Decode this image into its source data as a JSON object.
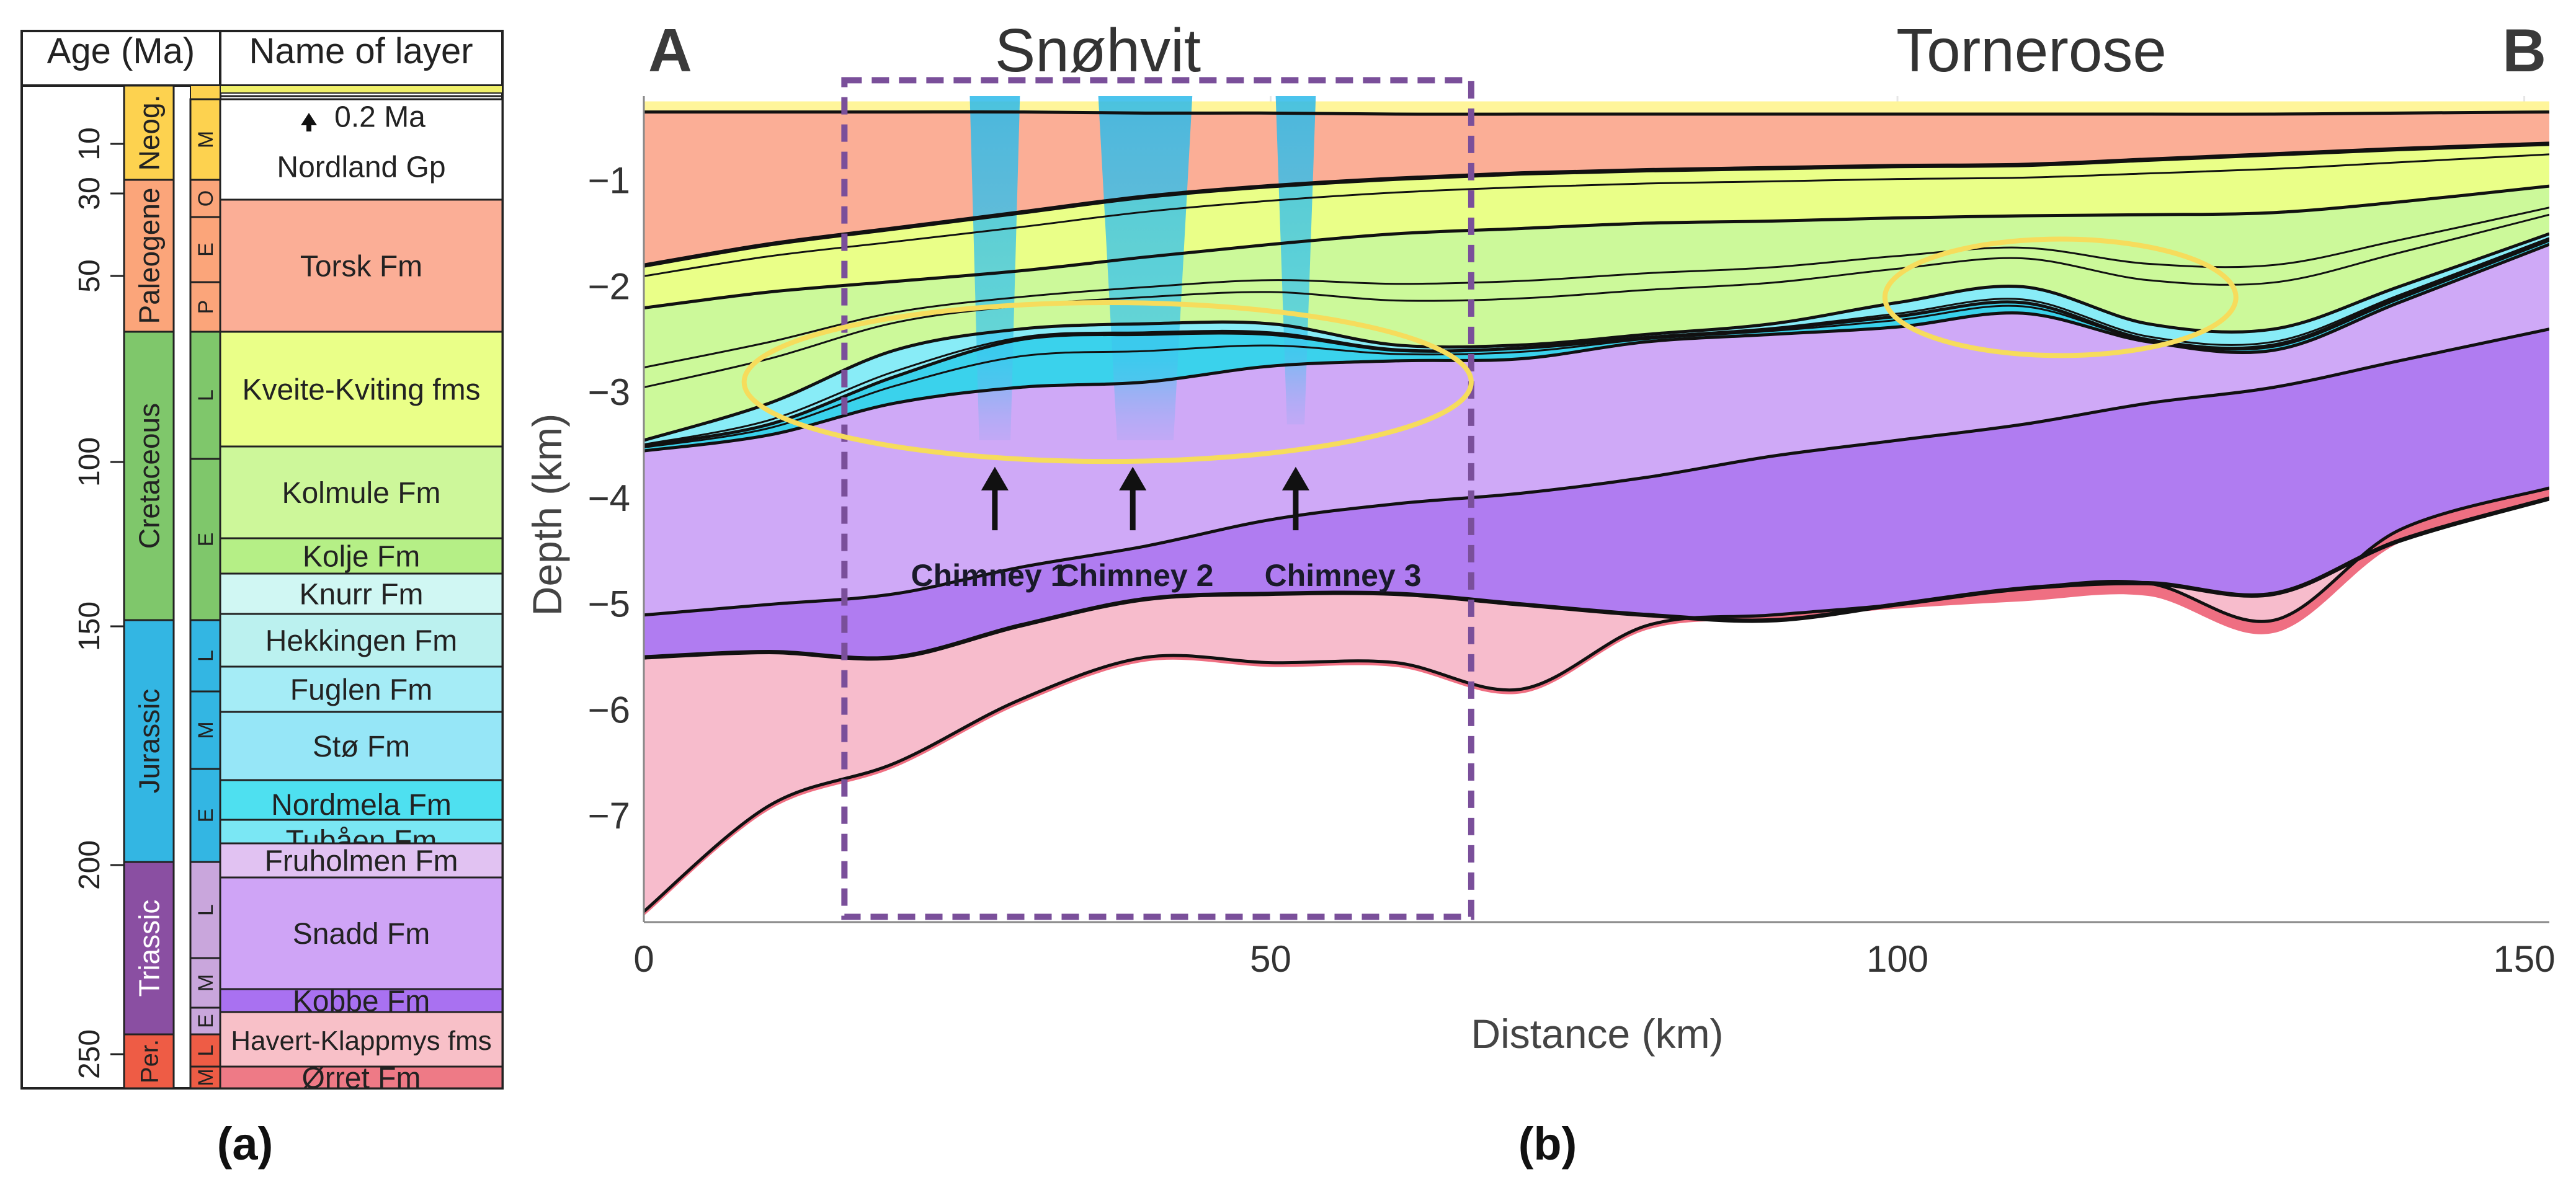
{
  "panel_a": {
    "header_age": "Age (Ma)",
    "header_name": "Name of layer",
    "age_ticks": [
      "10",
      "30",
      "50",
      "100",
      "150",
      "200",
      "250"
    ],
    "periods": [
      {
        "name": "Neog.",
        "color": "#fdd24f"
      },
      {
        "name": "Paleogene",
        "color": "#fba57a"
      },
      {
        "name": "Cretaceous",
        "color": "#7fc76b"
      },
      {
        "name": "Jurassic",
        "color": "#33b6e3"
      },
      {
        "name": "Triassic",
        "color": "#8a4fa2"
      },
      {
        "name": "Per.",
        "color": "#ee5c45"
      }
    ],
    "epochs": [
      "M",
      "O",
      "E",
      "P",
      "L",
      "E",
      "L",
      "M",
      "E",
      "L",
      "M",
      "E",
      "L",
      "M"
    ],
    "layers": [
      {
        "name": "0.2 Ma",
        "color": "#ffffff"
      },
      {
        "name": "Nordland Gp",
        "color": "#ffffff"
      },
      {
        "name": "Torsk Fm",
        "color": "#fbae96"
      },
      {
        "name": "Kveite-Kviting fms",
        "color": "#eaff88"
      },
      {
        "name": "Kolmule Fm",
        "color": "#cdf79a"
      },
      {
        "name": "Kolje Fm",
        "color": "#b5ef86"
      },
      {
        "name": "Knurr Fm",
        "color": "#d0f7f3"
      },
      {
        "name": "Hekkingen Fm",
        "color": "#bbf1ef"
      },
      {
        "name": "Fuglen Fm",
        "color": "#a5ecf6"
      },
      {
        "name": "Stø Fm",
        "color": "#96e6f7"
      },
      {
        "name": "Nordmela Fm",
        "color": "#4ee0f0"
      },
      {
        "name": "Tubåen Fm",
        "color": "#7ae7f4"
      },
      {
        "name": "Fruholmen Fm",
        "color": "#e1c2f2"
      },
      {
        "name": "Snadd Fm",
        "color": "#cfa4f6"
      },
      {
        "name": "Kobbe Fm",
        "color": "#a971f1"
      },
      {
        "name": "Havert-Klappmys fms",
        "color": "#f8c0c8"
      },
      {
        "name": "Ørret Fm",
        "color": "#ee7a86"
      }
    ],
    "caption": "(a)"
  },
  "panel_b": {
    "label_left": "A",
    "label_right": "B",
    "field_1": "Snøhvit",
    "field_2": "Tornerose",
    "chimneys": [
      "Chimney 1",
      "Chimney 2",
      "Chimney 3"
    ],
    "caption": "(b)"
  },
  "chart_data": {
    "type": "area",
    "xlabel": "Distance (km)",
    "ylabel": "Depth (km)",
    "xlim": [
      0,
      152
    ],
    "ylim": [
      -8,
      -0.2
    ],
    "xticks": [
      0,
      50,
      100,
      150
    ],
    "yticks": [
      -1,
      -2,
      -3,
      -4,
      -5,
      -6,
      -7
    ],
    "grid": true,
    "x": [
      0,
      10,
      20,
      30,
      40,
      50,
      60,
      70,
      80,
      90,
      100,
      110,
      120,
      130,
      140,
      152
    ],
    "horizons": [
      {
        "base_of": "Nordland Gp",
        "color": "#fff59a",
        "depth": [
          -0.35,
          -0.35,
          -0.35,
          -0.35,
          -0.36,
          -0.36,
          -0.37,
          -0.37,
          -0.37,
          -0.37,
          -0.37,
          -0.37,
          -0.37,
          -0.37,
          -0.36,
          -0.35
        ]
      },
      {
        "base_of": "Torsk Fm",
        "color": "#fbae96",
        "depth": [
          -1.8,
          -1.6,
          -1.45,
          -1.3,
          -1.15,
          -1.05,
          -0.98,
          -0.93,
          -0.9,
          -0.88,
          -0.86,
          -0.85,
          -0.8,
          -0.75,
          -0.7,
          -0.65
        ]
      },
      {
        "base_of": "Kveite-Kviting fms",
        "color": "#eaff88",
        "depth": [
          -2.2,
          -2.05,
          -1.95,
          -1.85,
          -1.72,
          -1.6,
          -1.5,
          -1.45,
          -1.4,
          -1.38,
          -1.35,
          -1.33,
          -1.32,
          -1.3,
          -1.2,
          -1.05
        ]
      },
      {
        "base_of": "Kolmule Fm",
        "color": "#ccf99a",
        "depth": [
          -3.45,
          -3.1,
          -2.6,
          -2.4,
          -2.35,
          -2.35,
          -2.55,
          -2.55,
          -2.45,
          -2.35,
          -2.15,
          -2.0,
          -2.35,
          -2.4,
          -2.0,
          -1.5
        ]
      },
      {
        "base_of": "Kolje Fm",
        "color": "#88ecf7",
        "depth": [
          -3.5,
          -3.3,
          -2.85,
          -2.5,
          -2.45,
          -2.45,
          -2.6,
          -2.58,
          -2.48,
          -2.4,
          -2.28,
          -2.15,
          -2.5,
          -2.55,
          -2.1,
          -1.55
        ]
      },
      {
        "base_of": "Jurassic",
        "color": "#3ad2ec",
        "depth": [
          -3.55,
          -3.4,
          -3.1,
          -2.95,
          -2.9,
          -2.75,
          -2.7,
          -2.68,
          -2.52,
          -2.45,
          -2.38,
          -2.25,
          -2.52,
          -2.6,
          -2.15,
          -1.6
        ]
      },
      {
        "base_of": "Snadd Fm",
        "color": "#cfa9f7",
        "depth": [
          -5.1,
          -5.0,
          -4.9,
          -4.65,
          -4.45,
          -4.2,
          -4.05,
          -3.95,
          -3.8,
          -3.6,
          -3.45,
          -3.3,
          -3.1,
          -2.95,
          -2.7,
          -2.4
        ]
      },
      {
        "base_of": "Kobbe Fm",
        "color": "#b07cf1",
        "depth": [
          -5.5,
          -5.45,
          -5.5,
          -5.2,
          -4.95,
          -4.9,
          -4.9,
          -5.0,
          -5.1,
          -5.15,
          -5.0,
          -4.85,
          -4.8,
          -4.9,
          -4.4,
          -4.0
        ]
      },
      {
        "base_of": "Havert-Klappmys fms",
        "color": "#f7bccc",
        "depth": [
          -7.9,
          -6.9,
          -6.5,
          -5.9,
          -5.5,
          -5.55,
          -5.55,
          -5.8,
          -5.2,
          -5.1,
          -5.0,
          -4.85,
          -4.8,
          -5.15,
          -4.3,
          -3.9
        ]
      }
    ],
    "chimney_positions_km": [
      28,
      40,
      52
    ],
    "study_box_km": [
      16,
      66
    ],
    "study_box_depth_km": [
      -0.05,
      -7.95
    ],
    "highlight_ellipses": [
      {
        "center": [
          37,
          -2.9
        ],
        "rx": 29,
        "ry": 0.75
      },
      {
        "center": [
          113,
          -2.1
        ],
        "rx": 14,
        "ry": 0.55
      }
    ]
  }
}
